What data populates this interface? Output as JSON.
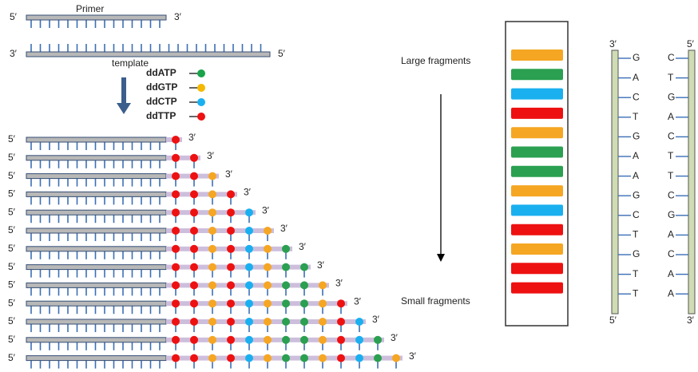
{
  "primer": {
    "label": "Primer",
    "end5": "5′",
    "end3": "3′"
  },
  "template": {
    "label": "template",
    "end3": "3′",
    "end5": "5′"
  },
  "legend": [
    {
      "label": "ddATP",
      "color": "#1aa34a"
    },
    {
      "label": "ddGTP",
      "color": "#f5b800"
    },
    {
      "label": "ddCTP",
      "color": "#1ab0f0"
    },
    {
      "label": "ddTTP",
      "color": "#ee1111"
    }
  ],
  "fragments": {
    "end5": "5′",
    "end3": "3′"
  },
  "gel": {
    "large_label": "Large fragments",
    "small_label": "Small fragments"
  },
  "strands": {
    "left": {
      "top": "3′",
      "bottom": "5′",
      "bases": [
        {
          "letter": "G",
          "color": "#f5a623"
        },
        {
          "letter": "A",
          "color": "#2aa050"
        },
        {
          "letter": "C",
          "color": "#1ab0f0"
        },
        {
          "letter": "T",
          "color": "#ee1111"
        },
        {
          "letter": "G",
          "color": "#f5a623"
        },
        {
          "letter": "A",
          "color": "#2aa050"
        },
        {
          "letter": "A",
          "color": "#2aa050"
        },
        {
          "letter": "G",
          "color": "#f5a623"
        },
        {
          "letter": "C",
          "color": "#1ab0f0"
        },
        {
          "letter": "T",
          "color": "#ee1111"
        },
        {
          "letter": "G",
          "color": "#f5a623"
        },
        {
          "letter": "T",
          "color": "#ee1111"
        },
        {
          "letter": "T",
          "color": "#ee1111"
        }
      ]
    },
    "right": {
      "top": "5′",
      "bottom": "3′",
      "bases": [
        {
          "letter": "C",
          "color": "#1ab0f0"
        },
        {
          "letter": "T",
          "color": "#ee1111"
        },
        {
          "letter": "G",
          "color": "#f5a623"
        },
        {
          "letter": "A",
          "color": "#2aa050"
        },
        {
          "letter": "C",
          "color": "#1ab0f0"
        },
        {
          "letter": "T",
          "color": "#ee1111"
        },
        {
          "letter": "T",
          "color": "#ee1111"
        },
        {
          "letter": "C",
          "color": "#1ab0f0"
        },
        {
          "letter": "G",
          "color": "#f5a623"
        },
        {
          "letter": "A",
          "color": "#2aa050"
        },
        {
          "letter": "C",
          "color": "#1ab0f0"
        },
        {
          "letter": "A",
          "color": "#2aa050"
        },
        {
          "letter": "A",
          "color": "#2aa050"
        }
      ]
    }
  }
}
